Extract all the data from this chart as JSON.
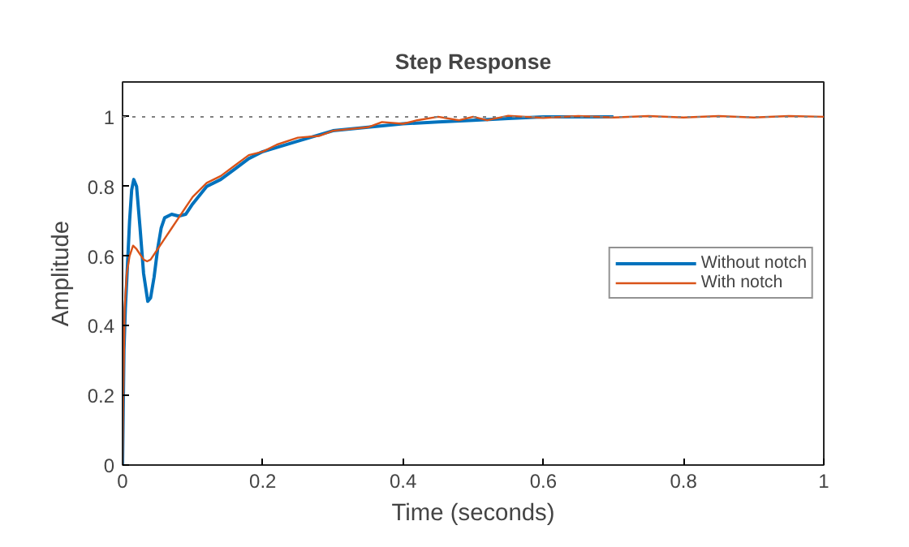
{
  "chart_data": {
    "type": "line",
    "title": "Step Response",
    "xlabel": "Time (seconds)",
    "ylabel": "Amplitude",
    "xlim": [
      0,
      1
    ],
    "ylim": [
      0,
      1.1
    ],
    "xticks": [
      0,
      0.2,
      0.4,
      0.6,
      0.8,
      1
    ],
    "yticks": [
      0,
      0.2,
      0.4,
      0.6,
      0.8,
      1
    ],
    "grid": false,
    "legend": "right",
    "line_style": "solid",
    "ref_lines": [
      {
        "axis": "y",
        "value": 1,
        "color": "#808080",
        "line_style": "dotted"
      }
    ],
    "series": [
      {
        "name": "Without notch",
        "color": "#0072bd",
        "x": [
          0,
          0.002,
          0.004,
          0.006,
          0.01,
          0.013,
          0.016,
          0.02,
          0.025,
          0.03,
          0.036,
          0.04,
          0.045,
          0.05,
          0.055,
          0.06,
          0.07,
          0.08,
          0.09,
          0.1,
          0.12,
          0.14,
          0.16,
          0.18,
          0.2,
          0.25,
          0.3,
          0.35,
          0.4,
          0.45,
          0.5,
          0.55,
          0.6,
          0.7
        ],
        "values": [
          0,
          0.33,
          0.45,
          0.53,
          0.7,
          0.79,
          0.82,
          0.8,
          0.68,
          0.55,
          0.47,
          0.48,
          0.54,
          0.62,
          0.68,
          0.71,
          0.72,
          0.715,
          0.72,
          0.75,
          0.8,
          0.82,
          0.85,
          0.88,
          0.9,
          0.93,
          0.96,
          0.97,
          0.98,
          0.985,
          0.99,
          0.995,
          1.0,
          1.0
        ]
      },
      {
        "name": "With notch",
        "color": "#d95319",
        "x": [
          0,
          0.001,
          0.003,
          0.006,
          0.01,
          0.015,
          0.02,
          0.03,
          0.035,
          0.04,
          0.05,
          0.06,
          0.07,
          0.08,
          0.09,
          0.1,
          0.12,
          0.14,
          0.16,
          0.18,
          0.2,
          0.22,
          0.25,
          0.28,
          0.3,
          0.35,
          0.37,
          0.4,
          0.42,
          0.45,
          0.48,
          0.5,
          0.52,
          0.55,
          0.6,
          0.65,
          0.7,
          0.75,
          0.8,
          0.85,
          0.9,
          0.95,
          1
        ],
        "values": [
          0,
          0.2,
          0.45,
          0.55,
          0.6,
          0.63,
          0.62,
          0.59,
          0.585,
          0.59,
          0.62,
          0.65,
          0.68,
          0.71,
          0.74,
          0.77,
          0.81,
          0.83,
          0.86,
          0.89,
          0.9,
          0.92,
          0.94,
          0.945,
          0.96,
          0.97,
          0.985,
          0.98,
          0.99,
          1.0,
          0.99,
          1.0,
          0.99,
          1.003,
          0.997,
          1.002,
          0.998,
          1.002,
          0.998,
          1.002,
          0.998,
          1.002,
          1.0
        ]
      }
    ]
  }
}
